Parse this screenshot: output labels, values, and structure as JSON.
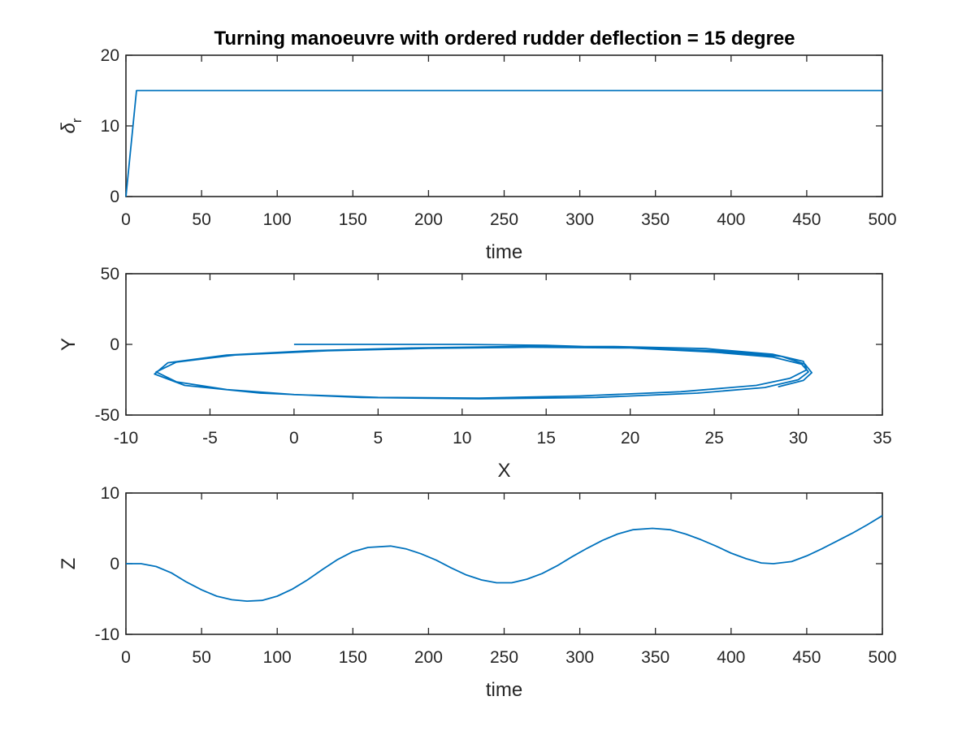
{
  "chart_data": [
    {
      "type": "line",
      "title": "Turning manoeuvre with ordered rudder deflection = 15 degree",
      "xlabel": "time",
      "ylabel": "δr",
      "ylabel_symbol": "δ",
      "ylabel_subscript": "r",
      "xlim": [
        0,
        500
      ],
      "ylim": [
        0,
        20
      ],
      "xticks": [
        0,
        50,
        100,
        150,
        200,
        250,
        300,
        350,
        400,
        450,
        500
      ],
      "yticks": [
        0,
        10,
        20
      ],
      "grid": false,
      "line_color": "#0072BD",
      "series": [
        {
          "x": [
            0,
            7,
            500
          ],
          "y": [
            0,
            15,
            15
          ]
        }
      ]
    },
    {
      "type": "line",
      "title": "",
      "xlabel": "X",
      "ylabel": "Y",
      "xlim": [
        -10,
        35
      ],
      "ylim": [
        -50,
        50
      ],
      "xticks": [
        -10,
        -5,
        0,
        5,
        10,
        15,
        20,
        25,
        30,
        35
      ],
      "yticks": [
        -50,
        0,
        50
      ],
      "grid": false,
      "line_color": "#0072BD",
      "series": [
        {
          "x": [
            0,
            5,
            10,
            15,
            20,
            25,
            28.5,
            30.2,
            30.6,
            30,
            28,
            24,
            18,
            11,
            4,
            -2,
            -6.5,
            -8.3,
            -7.5,
            -4,
            1,
            7,
            13,
            19,
            24.5,
            28.5,
            30.3,
            30.5,
            29.5,
            27.5,
            23,
            17,
            11,
            5,
            0,
            -4,
            -7,
            -8.2,
            -7,
            -3.5,
            2,
            8,
            14,
            20,
            25,
            29,
            30.4,
            30.8,
            30.3,
            28.8
          ],
          "y": [
            0,
            0,
            0,
            -0.7,
            -2.5,
            -5.5,
            -9,
            -14,
            -19.5,
            -25,
            -30.5,
            -34.5,
            -37.5,
            -38.5,
            -37.5,
            -34.5,
            -29,
            -21,
            -13,
            -7.5,
            -4.5,
            -2.5,
            -1.5,
            -1.5,
            -3,
            -7,
            -12,
            -18,
            -24,
            -29,
            -33.5,
            -36.5,
            -38,
            -37.5,
            -35.5,
            -32,
            -26.5,
            -19.5,
            -12.5,
            -7.5,
            -4.5,
            -2.8,
            -2,
            -2.5,
            -4.5,
            -8.5,
            -14,
            -20,
            -25.5,
            -30
          ]
        }
      ]
    },
    {
      "type": "line",
      "title": "",
      "xlabel": "time",
      "ylabel": "Z",
      "xlim": [
        0,
        500
      ],
      "ylim": [
        -10,
        10
      ],
      "xticks": [
        0,
        50,
        100,
        150,
        200,
        250,
        300,
        350,
        400,
        450,
        500
      ],
      "yticks": [
        -10,
        0,
        10
      ],
      "grid": false,
      "line_color": "#0072BD",
      "series": [
        {
          "x": [
            0,
            10,
            20,
            30,
            40,
            50,
            60,
            70,
            80,
            90,
            100,
            110,
            120,
            130,
            140,
            150,
            160,
            175,
            185,
            195,
            205,
            215,
            225,
            235,
            245,
            255,
            265,
            275,
            285,
            295,
            305,
            315,
            325,
            335,
            348,
            360,
            370,
            380,
            390,
            400,
            410,
            420,
            428,
            440,
            450,
            460,
            470,
            480,
            490,
            500
          ],
          "y": [
            0,
            0,
            -0.4,
            -1.3,
            -2.6,
            -3.7,
            -4.6,
            -5.1,
            -5.3,
            -5.2,
            -4.6,
            -3.6,
            -2.3,
            -0.8,
            0.6,
            1.7,
            2.3,
            2.5,
            2.1,
            1.4,
            0.5,
            -0.6,
            -1.6,
            -2.3,
            -2.7,
            -2.7,
            -2.2,
            -1.4,
            -0.3,
            1,
            2.2,
            3.3,
            4.2,
            4.8,
            5,
            4.8,
            4.2,
            3.4,
            2.5,
            1.5,
            0.7,
            0.1,
            0,
            0.3,
            1.1,
            2.1,
            3.2,
            4.3,
            5.5,
            6.8
          ]
        }
      ]
    }
  ]
}
